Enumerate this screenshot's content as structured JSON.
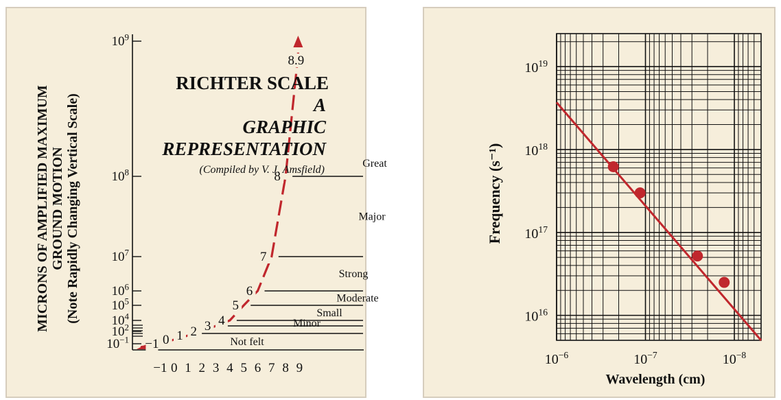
{
  "colors": {
    "panel_bg": "#f6eedb",
    "panel_border": "#d6cdbd",
    "curve": "#c0272d",
    "ink": "#111111"
  },
  "chart_data": [
    {
      "type": "line",
      "title": "RICHTER SCALE",
      "subtitle_lines": [
        "A",
        "GRAPHIC",
        "REPRESENTATION"
      ],
      "credit": "(Compiled by V. J. Amsfield)",
      "ylabel_lines": [
        "MICRONS OF AMPLIFIED MAXIMUM",
        "GROUND MOTION",
        "(Note Rapidly Changing Vertical Scale)"
      ],
      "xlabel": "",
      "x_ticks": [
        "−1",
        "0",
        "1",
        "2",
        "3",
        "4",
        "5",
        "6",
        "7",
        "8",
        "9"
      ],
      "y_ticks": [
        {
          "label": "10",
          "exp": "9",
          "value": 1000000000.0
        },
        {
          "label": "10",
          "exp": "8",
          "value": 100000000.0
        },
        {
          "label": "10",
          "exp": "7",
          "value": 10000000.0
        },
        {
          "label": "10",
          "exp": "6",
          "value": 1000000.0
        },
        {
          "label": "10",
          "exp": "5",
          "value": 100000.0
        },
        {
          "label": "10",
          "exp": "4",
          "value": 10000.0
        },
        {
          "label": "10",
          "exp": "2",
          "value": 100.0
        },
        {
          "label": "10",
          "exp": "−1",
          "value": 0.1
        }
      ],
      "curve_points": [
        {
          "label": "−1",
          "x": -1,
          "y": 0.1
        },
        {
          "label": "0",
          "x": 0,
          "y": 1
        },
        {
          "label": "1",
          "x": 1,
          "y": 10
        },
        {
          "label": "2",
          "x": 2,
          "y": 100
        },
        {
          "label": "3",
          "x": 3,
          "y": 1000
        },
        {
          "label": "4",
          "x": 4,
          "y": 10000
        },
        {
          "label": "5",
          "x": 5,
          "y": 100000
        },
        {
          "label": "6",
          "x": 6,
          "y": 1000000
        },
        {
          "label": "7",
          "x": 7,
          "y": 10000000
        },
        {
          "label": "8",
          "x": 8,
          "y": 100000000
        },
        {
          "label": "8.9",
          "x": 8.9,
          "y": 794000000
        }
      ],
      "categories": [
        {
          "name": "Not felt",
          "from": 1.5,
          "to": 3
        },
        {
          "name": "Minor",
          "from": 3,
          "to": 4
        },
        {
          "name": "Small",
          "from": 4,
          "to": 5
        },
        {
          "name": "Moderate",
          "from": 5,
          "to": 6
        },
        {
          "name": "Strong",
          "from": 6,
          "to": 7
        },
        {
          "name": "Major",
          "from": 7,
          "to": 8
        },
        {
          "name": "Great",
          "from": 8,
          "to": 9
        }
      ]
    },
    {
      "type": "line",
      "scale": "log-log",
      "grid": true,
      "xlabel": "Wavelength (cm)",
      "ylabel": "Frequency (s⁻¹)",
      "x_ticks": [
        {
          "label": "10",
          "exp": "−6",
          "value": 1e-06
        },
        {
          "label": "10",
          "exp": "−7",
          "value": 1e-07
        },
        {
          "label": "10",
          "exp": "−8",
          "value": 1e-08
        }
      ],
      "y_ticks": [
        {
          "label": "10",
          "exp": "19",
          "value": 1e+19
        },
        {
          "label": "10",
          "exp": "18",
          "value": 1e+18
        },
        {
          "label": "10",
          "exp": "17",
          "value": 1e+17
        },
        {
          "label": "10",
          "exp": "16",
          "value": 1e+16
        }
      ],
      "xlim": [
        1e-06,
        5e-09
      ],
      "ylim": [
        5000000000000000.0,
        2.5e+19
      ],
      "line": {
        "x": [
          1e-06,
          5e-09
        ],
        "y": [
          3.7e+18,
          5000000000000000.0
        ]
      },
      "points": [
        {
          "x": 2.3e-07,
          "y": 6.2e+17
        },
        {
          "x": 1.15e-07,
          "y": 3e+17
        },
        {
          "x": 2.6e-08,
          "y": 5.2e+16
        },
        {
          "x": 1.3e-08,
          "y": 2.5e+16
        }
      ]
    }
  ]
}
